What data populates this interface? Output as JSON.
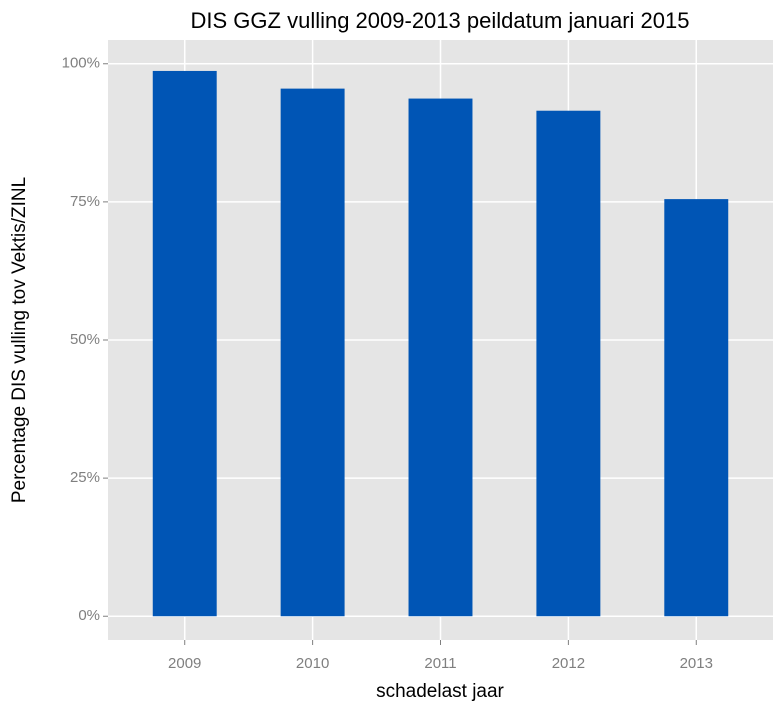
{
  "chart_data": {
    "type": "bar",
    "title": "DIS GGZ vulling 2009-2013 peildatum januari 2015",
    "x_label": "schadelast jaar",
    "y_label": "Percentage DIS vulling tov Vektis/ZINL",
    "categories": [
      "2009",
      "2010",
      "2011",
      "2012",
      "2013"
    ],
    "values": [
      98.7,
      95.5,
      93.7,
      91.5,
      75.5
    ],
    "color": "#0055b5",
    "ylim": [
      -4.3,
      104.3
    ],
    "yticks": [
      {
        "value": 0,
        "label": "0%"
      },
      {
        "value": 25,
        "label": "25%"
      },
      {
        "value": 50,
        "label": "50%"
      },
      {
        "value": 75,
        "label": "75%"
      },
      {
        "value": 100,
        "label": "100%"
      }
    ],
    "grid": true
  }
}
